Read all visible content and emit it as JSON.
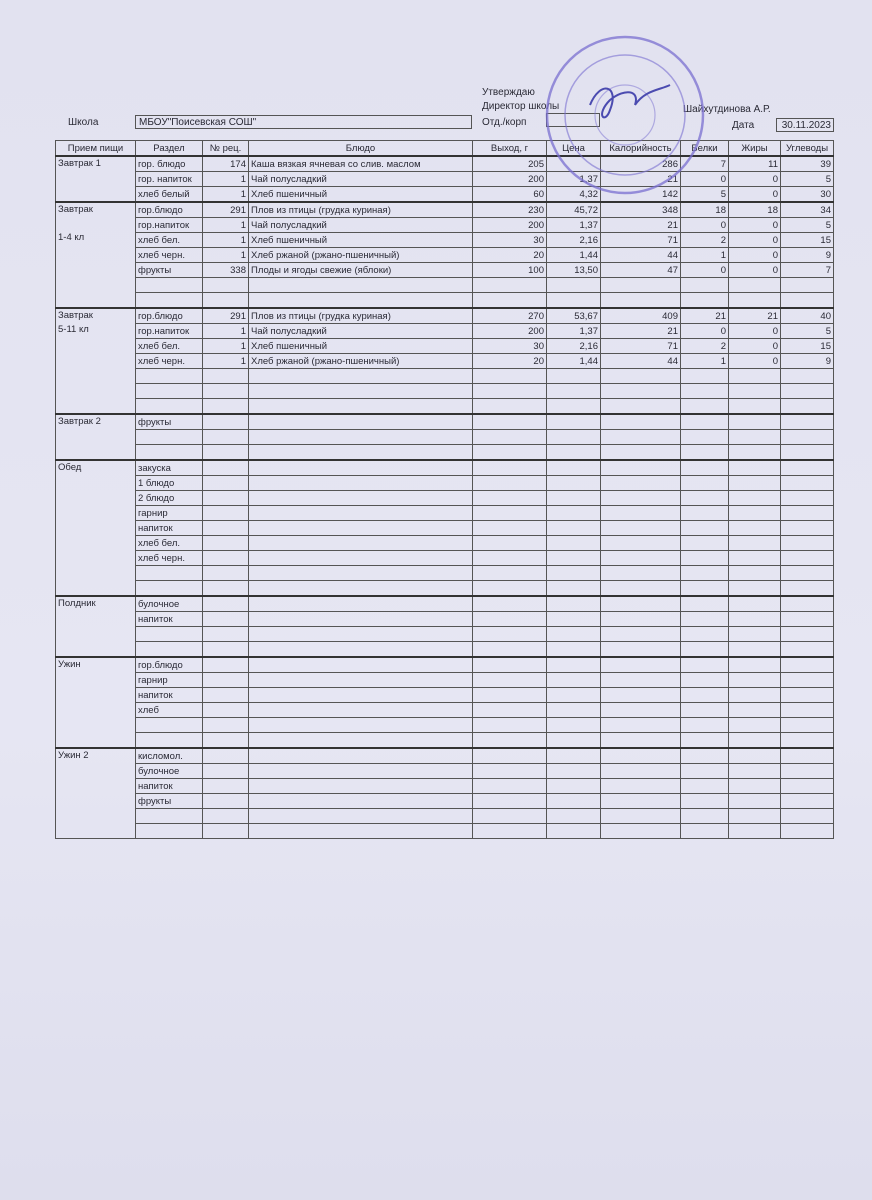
{
  "header": {
    "approve": "Утверждаю",
    "director": "Директор школы",
    "director_name": "Шайхутдинова А.Р.",
    "school_label": "Школа",
    "school_value": "МБОУ\"Поисевская СОШ\"",
    "dept_label": "Отд./корп",
    "dept_value": "",
    "date_label": "Дата",
    "date_value": "30.11.2023"
  },
  "colors": {
    "stamp": "#7a6fd0",
    "ink": "#2a2a35"
  },
  "table": {
    "columns": [
      "Прием пищи",
      "Раздел",
      "№ рец.",
      "Блюдо",
      "Выход, г",
      "Цена",
      "Калорийность",
      "Белки",
      "Жиры",
      "Углеводы"
    ],
    "groups": [
      {
        "meal": [
          "Завтрак 1"
        ],
        "rows": [
          [
            "гор. блюдо",
            "174",
            "Каша вязкая ячневая со слив. маслом",
            "205",
            "",
            "286",
            "7",
            "11",
            "39"
          ],
          [
            "гор. напиток",
            "1",
            "Чай полусладкий",
            "200",
            "1,37",
            "21",
            "0",
            "0",
            "5"
          ],
          [
            "хлеб белый",
            "1",
            "Хлеб пшеничный",
            "60",
            "4,32",
            "142",
            "5",
            "0",
            "30"
          ]
        ]
      },
      {
        "meal": [
          "Завтрак",
          "",
          "1-4 кл"
        ],
        "rows": [
          [
            "гор.блюдо",
            "291",
            "Плов из птицы (грудка куриная)",
            "230",
            "45,72",
            "348",
            "18",
            "18",
            "34"
          ],
          [
            "гор.напиток",
            "1",
            "Чай полусладкий",
            "200",
            "1,37",
            "21",
            "0",
            "0",
            "5"
          ],
          [
            "хлеб бел.",
            "1",
            "Хлеб пшеничный",
            "30",
            "2,16",
            "71",
            "2",
            "0",
            "15"
          ],
          [
            "хлеб черн.",
            "1",
            "Хлеб ржаной (ржано-пшеничный)",
            "20",
            "1,44",
            "44",
            "1",
            "0",
            "9"
          ],
          [
            "фрукты",
            "338",
            "Плоды и ягоды свежие (яблоки)",
            "100",
            "13,50",
            "47",
            "0",
            "0",
            "7"
          ],
          [
            "",
            "",
            "",
            "",
            "",
            "",
            "",
            "",
            ""
          ],
          [
            "",
            "",
            "",
            "",
            "",
            "",
            "",
            "",
            ""
          ]
        ]
      },
      {
        "meal": [
          "Завтрак",
          "5-11 кл"
        ],
        "rows": [
          [
            "гор.блюдо",
            "291",
            "Плов из птицы (грудка куриная)",
            "270",
            "53,67",
            "409",
            "21",
            "21",
            "40"
          ],
          [
            "гор.напиток",
            "1",
            "Чай полусладкий",
            "200",
            "1,37",
            "21",
            "0",
            "0",
            "5"
          ],
          [
            "хлеб бел.",
            "1",
            "Хлеб пшеничный",
            "30",
            "2,16",
            "71",
            "2",
            "0",
            "15"
          ],
          [
            "хлеб черн.",
            "1",
            "Хлеб ржаной (ржано-пшеничный)",
            "20",
            "1,44",
            "44",
            "1",
            "0",
            "9"
          ],
          [
            "",
            "",
            "",
            "",
            "",
            "",
            "",
            "",
            ""
          ],
          [
            "",
            "",
            "",
            "",
            "",
            "",
            "",
            "",
            ""
          ],
          [
            "",
            "",
            "",
            "",
            "",
            "",
            "",
            "",
            ""
          ]
        ]
      },
      {
        "meal": [
          "Завтрак 2"
        ],
        "rows": [
          [
            "фрукты",
            "",
            "",
            "",
            "",
            "",
            "",
            "",
            ""
          ],
          [
            "",
            "",
            "",
            "",
            "",
            "",
            "",
            "",
            ""
          ],
          [
            "",
            "",
            "",
            "",
            "",
            "",
            "",
            "",
            ""
          ]
        ]
      },
      {
        "meal": [
          "Обед"
        ],
        "rows": [
          [
            "закуска",
            "",
            "",
            "",
            "",
            "",
            "",
            "",
            ""
          ],
          [
            "1 блюдо",
            "",
            "",
            "",
            "",
            "",
            "",
            "",
            ""
          ],
          [
            "2 блюдо",
            "",
            "",
            "",
            "",
            "",
            "",
            "",
            ""
          ],
          [
            "гарнир",
            "",
            "",
            "",
            "",
            "",
            "",
            "",
            ""
          ],
          [
            "напиток",
            "",
            "",
            "",
            "",
            "",
            "",
            "",
            ""
          ],
          [
            "хлеб бел.",
            "",
            "",
            "",
            "",
            "",
            "",
            "",
            ""
          ],
          [
            "хлеб черн.",
            "",
            "",
            "",
            "",
            "",
            "",
            "",
            ""
          ],
          [
            "",
            "",
            "",
            "",
            "",
            "",
            "",
            "",
            ""
          ],
          [
            "",
            "",
            "",
            "",
            "",
            "",
            "",
            "",
            ""
          ]
        ]
      },
      {
        "meal": [
          "Полдник"
        ],
        "rows": [
          [
            "булочное",
            "",
            "",
            "",
            "",
            "",
            "",
            "",
            ""
          ],
          [
            "напиток",
            "",
            "",
            "",
            "",
            "",
            "",
            "",
            ""
          ],
          [
            "",
            "",
            "",
            "",
            "",
            "",
            "",
            "",
            ""
          ],
          [
            "",
            "",
            "",
            "",
            "",
            "",
            "",
            "",
            ""
          ]
        ]
      },
      {
        "meal": [
          "Ужин"
        ],
        "rows": [
          [
            "гор.блюдо",
            "",
            "",
            "",
            "",
            "",
            "",
            "",
            ""
          ],
          [
            "гарнир",
            "",
            "",
            "",
            "",
            "",
            "",
            "",
            ""
          ],
          [
            "напиток",
            "",
            "",
            "",
            "",
            "",
            "",
            "",
            ""
          ],
          [
            "хлеб",
            "",
            "",
            "",
            "",
            "",
            "",
            "",
            ""
          ],
          [
            "",
            "",
            "",
            "",
            "",
            "",
            "",
            "",
            ""
          ],
          [
            "",
            "",
            "",
            "",
            "",
            "",
            "",
            "",
            ""
          ]
        ]
      },
      {
        "meal": [
          "Ужин 2"
        ],
        "rows": [
          [
            "кисломол.",
            "",
            "",
            "",
            "",
            "",
            "",
            "",
            ""
          ],
          [
            "булочное",
            "",
            "",
            "",
            "",
            "",
            "",
            "",
            ""
          ],
          [
            "напиток",
            "",
            "",
            "",
            "",
            "",
            "",
            "",
            ""
          ],
          [
            "фрукты",
            "",
            "",
            "",
            "",
            "",
            "",
            "",
            ""
          ],
          [
            "",
            "",
            "",
            "",
            "",
            "",
            "",
            "",
            ""
          ],
          [
            "",
            "",
            "",
            "",
            "",
            "",
            "",
            "",
            ""
          ]
        ]
      }
    ]
  }
}
